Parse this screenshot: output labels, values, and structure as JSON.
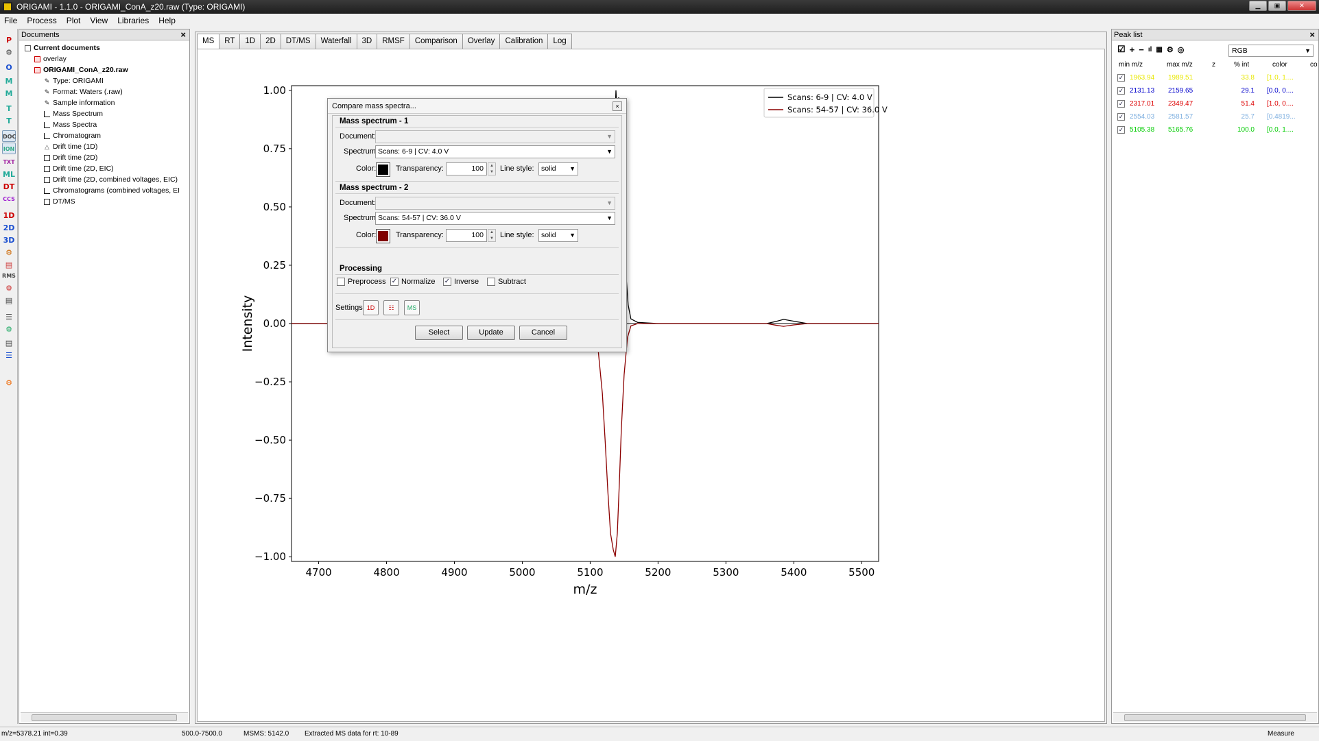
{
  "window": {
    "title": "ORIGAMI - 1.1.0 - ORIGAMI_ConA_z20.raw (Type: ORIGAMI)"
  },
  "menu": [
    "File",
    "Process",
    "Plot",
    "View",
    "Libraries",
    "Help"
  ],
  "toolbar_left": [
    "P",
    "",
    "O",
    "M",
    "M",
    "T",
    "T",
    "DOC",
    "ION",
    "TXT",
    "ML",
    "DT",
    "CCS",
    "1D",
    "2D",
    "3D",
    "",
    "",
    "RMS",
    "",
    "",
    "",
    "",
    "",
    "",
    ""
  ],
  "documents": {
    "header": "Documents",
    "tree": [
      {
        "label": "Current documents",
        "level": 0,
        "bold": true,
        "icon": "doc"
      },
      {
        "label": "overlay",
        "level": 1,
        "bold": false,
        "icon": "red"
      },
      {
        "label": "ORIGAMI_ConA_z20.raw",
        "level": 1,
        "bold": true,
        "icon": "red"
      },
      {
        "label": "Type: ORIGAMI",
        "level": 2,
        "bold": false,
        "icon": "pen"
      },
      {
        "label": "Format: Waters (.raw)",
        "level": 2,
        "bold": false,
        "icon": "pen"
      },
      {
        "label": "Sample information",
        "level": 2,
        "bold": false,
        "icon": "pen"
      },
      {
        "label": "Mass Spectrum",
        "level": 2,
        "bold": false,
        "icon": "bar"
      },
      {
        "label": "Mass Spectra",
        "level": 2,
        "bold": false,
        "icon": "bar"
      },
      {
        "label": "Chromatogram",
        "level": 2,
        "bold": false,
        "icon": "bar"
      },
      {
        "label": "Drift time (1D)",
        "level": 2,
        "bold": false,
        "icon": "tri"
      },
      {
        "label": "Drift time (2D)",
        "level": 2,
        "bold": false,
        "icon": "chk"
      },
      {
        "label": "Drift time (2D, EIC)",
        "level": 2,
        "bold": false,
        "icon": "chk"
      },
      {
        "label": "Drift time (2D, combined voltages, EIC)",
        "level": 2,
        "bold": false,
        "icon": "chk"
      },
      {
        "label": "Chromatograms (combined voltages, EI",
        "level": 2,
        "bold": false,
        "icon": "bar"
      },
      {
        "label": "DT/MS",
        "level": 2,
        "bold": false,
        "icon": "chk"
      }
    ]
  },
  "tabs": [
    "MS",
    "RT",
    "1D",
    "2D",
    "DT/MS",
    "Waterfall",
    "3D",
    "RMSF",
    "Comparison",
    "Overlay",
    "Calibration",
    "Log"
  ],
  "chart_data": {
    "type": "line",
    "xlabel": "m/z",
    "ylabel": "Intensity",
    "xlim": [
      4660,
      5525
    ],
    "ylim": [
      -1.02,
      1.02
    ],
    "xticks": [
      4700,
      4800,
      4900,
      5000,
      5100,
      5200,
      5300,
      5400,
      5500
    ],
    "yticks": [
      1.0,
      0.75,
      0.5,
      0.25,
      0.0,
      -0.25,
      -0.5,
      -0.75,
      -1.0
    ],
    "ytick_labels": [
      "1.00",
      "0.75",
      "0.50",
      "0.25",
      "0.00",
      "−0.25",
      "−0.50",
      "−0.75",
      "−1.00"
    ],
    "legend_position": "top-right",
    "series": [
      {
        "name": "Scans: 6-9 | CV: 4.0 V",
        "color": "#000000",
        "x": [
          4660,
          4880,
          4900,
          4960,
          4990,
          5020,
          5060,
          5080,
          5095,
          5105,
          5115,
          5120,
          5125,
          5128,
          5131,
          5133,
          5135,
          5137,
          5138,
          5140,
          5142,
          5144,
          5146,
          5148,
          5150,
          5153,
          5156,
          5160,
          5170,
          5200,
          5360,
          5375,
          5385,
          5400,
          5420,
          5525
        ],
        "y": [
          0,
          0,
          0.005,
          0.004,
          0.006,
          0.003,
          0.008,
          0.01,
          0.02,
          0.03,
          0.07,
          0.12,
          0.25,
          0.42,
          0.65,
          0.8,
          0.95,
          0.92,
          1.0,
          0.88,
          0.97,
          0.8,
          0.85,
          0.6,
          0.4,
          0.2,
          0.08,
          0.02,
          0.005,
          0,
          0,
          0.01,
          0.018,
          0.01,
          0,
          0
        ]
      },
      {
        "name": "Scans: 54-57 | CV: 36.0 V",
        "color": "#8b0000",
        "x": [
          4660,
          5080,
          5095,
          5105,
          5112,
          5118,
          5122,
          5126,
          5130,
          5134,
          5137,
          5140,
          5143,
          5146,
          5150,
          5155,
          5160,
          5170,
          5200,
          5360,
          5375,
          5385,
          5400,
          5420,
          5525
        ],
        "y": [
          0,
          0,
          -0.01,
          -0.04,
          -0.12,
          -0.3,
          -0.5,
          -0.72,
          -0.9,
          -0.97,
          -1.0,
          -0.9,
          -0.68,
          -0.45,
          -0.22,
          -0.06,
          -0.01,
          0,
          0,
          0,
          -0.008,
          -0.012,
          -0.006,
          0,
          0
        ]
      }
    ]
  },
  "dialog": {
    "title": "Compare mass spectra...",
    "ms1": {
      "heading": "Mass spectrum - 1",
      "document_label": "Document:",
      "document_value": "",
      "spectrum_label": "Spectrum:",
      "spectrum_value": "Scans: 6-9 | CV: 4.0 V",
      "color_label": "Color:",
      "color": "#000000",
      "transparency_label": "Transparency:",
      "transparency": "100",
      "linestyle_label": "Line style:",
      "linestyle": "solid"
    },
    "ms2": {
      "heading": "Mass spectrum - 2",
      "document_label": "Document:",
      "document_value": "",
      "spectrum_label": "Spectrum:",
      "spectrum_value": "Scans: 54-57 | CV: 36.0 V",
      "color_label": "Color:",
      "color": "#800000",
      "transparency_label": "Transparency:",
      "transparency": "100",
      "linestyle_label": "Line style:",
      "linestyle": "solid"
    },
    "processing": {
      "heading": "Processing",
      "preprocess": "Preprocess",
      "preprocess_checked": false,
      "normalize": "Normalize",
      "normalize_checked": true,
      "inverse": "Inverse",
      "inverse_checked": true,
      "subtract": "Subtract",
      "subtract_checked": false
    },
    "settings_label": "Settings:",
    "buttons": {
      "select": "Select",
      "update": "Update",
      "cancel": "Cancel"
    }
  },
  "peak_list": {
    "header": "Peak list",
    "colormap": "RGB",
    "columns": [
      "min m/z",
      "max m/z",
      "z",
      "% int",
      "color",
      "co"
    ],
    "rows": [
      {
        "min": "1963.94",
        "max": "1989.51",
        "z": "",
        "int": "33.8",
        "color": "[1.0, 1....",
        "text_color": "#e8e800"
      },
      {
        "min": "2131.13",
        "max": "2159.65",
        "z": "",
        "int": "29.1",
        "color": "[0.0, 0....",
        "text_color": "#0000cc"
      },
      {
        "min": "2317.01",
        "max": "2349.47",
        "z": "",
        "int": "51.4",
        "color": "[1.0, 0....",
        "text_color": "#dd0000"
      },
      {
        "min": "2554.03",
        "max": "2581.57",
        "z": "",
        "int": "25.7",
        "color": "[0.4819...",
        "text_color": "#7fb0e0"
      },
      {
        "min": "5105.38",
        "max": "5165.76",
        "z": "",
        "int": "100.0",
        "color": "[0.0, 1....",
        "text_color": "#00cc00"
      }
    ]
  },
  "status": {
    "cursor": "m/z=5378.21 int=0.39",
    "range": "500.0-7500.0",
    "msms": "MSMS: 5142.0",
    "message": "Extracted MS data for rt: 10-89",
    "mode": "Measure"
  }
}
